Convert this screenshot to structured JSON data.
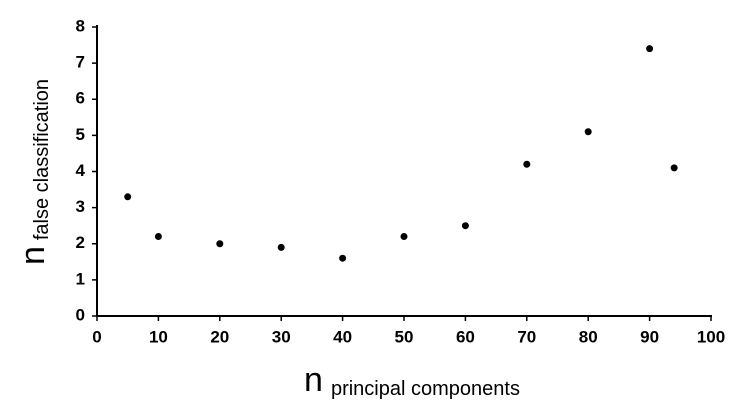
{
  "chart_data": {
    "type": "scatter",
    "xlabel_symbol": "n",
    "xlabel_subscript": "principal components",
    "ylabel_symbol": "n",
    "ylabel_subscript": "false classification",
    "x": [
      5,
      10,
      20,
      30,
      40,
      50,
      60,
      70,
      80,
      90,
      94
    ],
    "values": [
      3.3,
      2.2,
      2.0,
      1.9,
      1.6,
      2.2,
      2.5,
      4.2,
      5.1,
      7.4,
      4.1
    ],
    "color": "#000000",
    "xlim": [
      0,
      100
    ],
    "xticks": [
      0,
      10,
      20,
      30,
      40,
      50,
      60,
      70,
      80,
      90,
      100
    ],
    "ylim": [
      0,
      8
    ],
    "yticks": [
      0,
      1,
      2,
      3,
      4,
      5,
      6,
      7,
      8
    ]
  }
}
